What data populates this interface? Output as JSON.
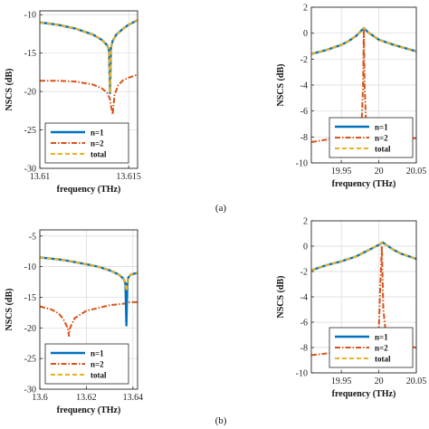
{
  "captions": {
    "top": "(a)",
    "bottom": "(b)"
  },
  "colors": {
    "n1": "#0072BD",
    "n2": "#D95319",
    "total": "#EDB120",
    "grid": "#d9d9d9",
    "axis": "#262626"
  },
  "chart_data": [
    {
      "type": "line",
      "xlabel": "frequency (THz)",
      "ylabel": "NSCS (dB)",
      "xlim": [
        13.61,
        13.6155
      ],
      "ylim": [
        -30,
        -9.5
      ],
      "xticks": [
        "13.61",
        "13.615"
      ],
      "yticks": [
        "-10",
        "-15",
        "-20",
        "-25",
        "-30"
      ],
      "grid": true,
      "legend": "bottom-left",
      "series": [
        {
          "name": "n=1",
          "x": [
            13.61,
            13.611,
            13.612,
            13.613,
            13.6135,
            13.6138,
            13.6139,
            13.61395,
            13.614,
            13.6141,
            13.6143,
            13.6147,
            13.615,
            13.6155
          ],
          "y": [
            -11.0,
            -11.3,
            -11.8,
            -12.6,
            -13.3,
            -14.0,
            -14.7,
            -20.2,
            -14.3,
            -13.4,
            -12.6,
            -11.8,
            -11.3,
            -10.7
          ]
        },
        {
          "name": "n=2",
          "x": [
            13.61,
            13.611,
            13.612,
            13.613,
            13.6135,
            13.6138,
            13.61395,
            13.614,
            13.6141,
            13.6142,
            13.6144,
            13.6147,
            13.615,
            13.6155
          ],
          "y": [
            -18.6,
            -18.6,
            -18.7,
            -19.1,
            -19.6,
            -20.2,
            -21.0,
            -21.8,
            -23.0,
            -20.5,
            -19.2,
            -18.5,
            -18.2,
            -17.8
          ]
        },
        {
          "name": "total",
          "x": [
            13.61,
            13.611,
            13.612,
            13.613,
            13.6135,
            13.6138,
            13.6139,
            13.61395,
            13.614,
            13.6141,
            13.6143,
            13.6147,
            13.615,
            13.6155
          ],
          "y": [
            -11.0,
            -11.3,
            -11.8,
            -12.6,
            -13.3,
            -14.0,
            -14.7,
            -20.2,
            -14.3,
            -13.4,
            -12.6,
            -11.8,
            -11.3,
            -10.7
          ]
        }
      ]
    },
    {
      "type": "line",
      "xlabel": "frequency (THz)",
      "ylabel": "NSCS (dB)",
      "xlim": [
        19.91,
        20.05
      ],
      "ylim": [
        -10,
        2
      ],
      "xticks": [
        "19.95",
        "20",
        "20.05"
      ],
      "yticks": [
        "2",
        "0",
        "-2",
        "-4",
        "-6",
        "-8",
        "-10"
      ],
      "grid": true,
      "legend": "bottom-right",
      "series": [
        {
          "name": "n=1",
          "x": [
            19.91,
            19.93,
            19.95,
            19.96,
            19.97,
            19.975,
            19.98,
            19.985,
            19.99,
            20.0,
            20.02,
            20.05
          ],
          "y": [
            -1.6,
            -1.3,
            -0.9,
            -0.6,
            -0.2,
            0.1,
            0.4,
            0.1,
            -0.1,
            -0.5,
            -0.9,
            -1.4
          ]
        },
        {
          "name": "n=2",
          "x": [
            19.91,
            19.94,
            19.96,
            19.97,
            19.977,
            19.979,
            19.98,
            19.981,
            19.983,
            19.99,
            20.0,
            20.02,
            20.05
          ],
          "y": [
            -8.4,
            -8.1,
            -7.9,
            -7.7,
            -7.0,
            -4.0,
            0.4,
            -4.0,
            -7.0,
            -7.8,
            -8.0,
            -8.1,
            -8.1
          ]
        },
        {
          "name": "total",
          "x": [
            19.91,
            19.93,
            19.95,
            19.96,
            19.97,
            19.975,
            19.98,
            19.985,
            19.99,
            20.0,
            20.02,
            20.05
          ],
          "y": [
            -1.6,
            -1.3,
            -0.9,
            -0.6,
            -0.2,
            0.1,
            0.4,
            0.1,
            -0.1,
            -0.5,
            -0.9,
            -1.4
          ]
        }
      ]
    },
    {
      "type": "line",
      "xlabel": "frequency (THz)",
      "ylabel": "NSCS (dB)",
      "xlim": [
        13.6,
        13.642
      ],
      "ylim": [
        -30,
        -4
      ],
      "xticks": [
        "13.6",
        "13.62",
        "13.64"
      ],
      "yticks": [
        "-5",
        "-10",
        "-15",
        "-20",
        "-25",
        "-30"
      ],
      "grid": true,
      "legend": "bottom-left",
      "series": [
        {
          "name": "n=1",
          "x": [
            13.6,
            13.61,
            13.62,
            13.625,
            13.63,
            13.634,
            13.636,
            13.6368,
            13.6372,
            13.6376,
            13.638,
            13.639,
            13.642
          ],
          "y": [
            -8.5,
            -8.9,
            -9.6,
            -10.0,
            -10.6,
            -11.3,
            -12.0,
            -12.8,
            -19.6,
            -13.0,
            -11.8,
            -11.3,
            -11.0
          ]
        },
        {
          "name": "n=2",
          "x": [
            13.6,
            13.605,
            13.608,
            13.61,
            13.612,
            13.6125,
            13.613,
            13.615,
            13.62,
            13.63,
            13.637,
            13.6375,
            13.638,
            13.642
          ],
          "y": [
            -16.5,
            -17.0,
            -17.6,
            -18.5,
            -20.0,
            -21.3,
            -20.0,
            -18.4,
            -17.2,
            -16.3,
            -16.0,
            -15.8,
            -15.8,
            -15.8
          ]
        },
        {
          "name": "total",
          "x": [
            13.6,
            13.61,
            13.62,
            13.625,
            13.63,
            13.634,
            13.636,
            13.6368,
            13.6372,
            13.6376,
            13.638,
            13.639,
            13.642
          ],
          "y": [
            -8.5,
            -8.9,
            -9.6,
            -10.0,
            -10.6,
            -11.3,
            -12.0,
            -12.8,
            -14.0,
            -13.0,
            -11.8,
            -11.3,
            -11.0
          ]
        }
      ]
    },
    {
      "type": "line",
      "xlabel": "frequency (THz)",
      "ylabel": "NSCS (dB)",
      "xlim": [
        19.91,
        20.05
      ],
      "ylim": [
        -10,
        2
      ],
      "xticks": [
        "19.95",
        "20",
        "20.05"
      ],
      "yticks": [
        "2",
        "0",
        "-2",
        "-4",
        "-6",
        "-8",
        "-10"
      ],
      "grid": true,
      "legend": "bottom-right",
      "series": [
        {
          "name": "n=1",
          "x": [
            19.91,
            19.93,
            19.95,
            19.97,
            19.98,
            19.99,
            20.0,
            20.005,
            20.01,
            20.02,
            20.03,
            20.05
          ],
          "y": [
            -1.9,
            -1.5,
            -1.2,
            -0.8,
            -0.5,
            -0.2,
            0.1,
            0.3,
            0.1,
            -0.3,
            -0.6,
            -1.0
          ]
        },
        {
          "name": "n=2",
          "x": [
            19.91,
            19.94,
            19.96,
            19.98,
            19.995,
            20.0,
            20.002,
            20.004,
            20.006,
            20.01,
            20.02,
            20.05
          ],
          "y": [
            -8.6,
            -8.4,
            -8.2,
            -8.0,
            -7.5,
            -6.5,
            -3.0,
            0.0,
            -5.0,
            -7.3,
            -7.8,
            -8.0
          ]
        },
        {
          "name": "total",
          "x": [
            19.91,
            19.93,
            19.95,
            19.97,
            19.98,
            19.99,
            20.0,
            20.005,
            20.01,
            20.02,
            20.03,
            20.05
          ],
          "y": [
            -1.9,
            -1.5,
            -1.2,
            -0.8,
            -0.5,
            -0.2,
            0.1,
            0.3,
            0.1,
            -0.3,
            -0.6,
            -1.0
          ]
        }
      ]
    }
  ]
}
